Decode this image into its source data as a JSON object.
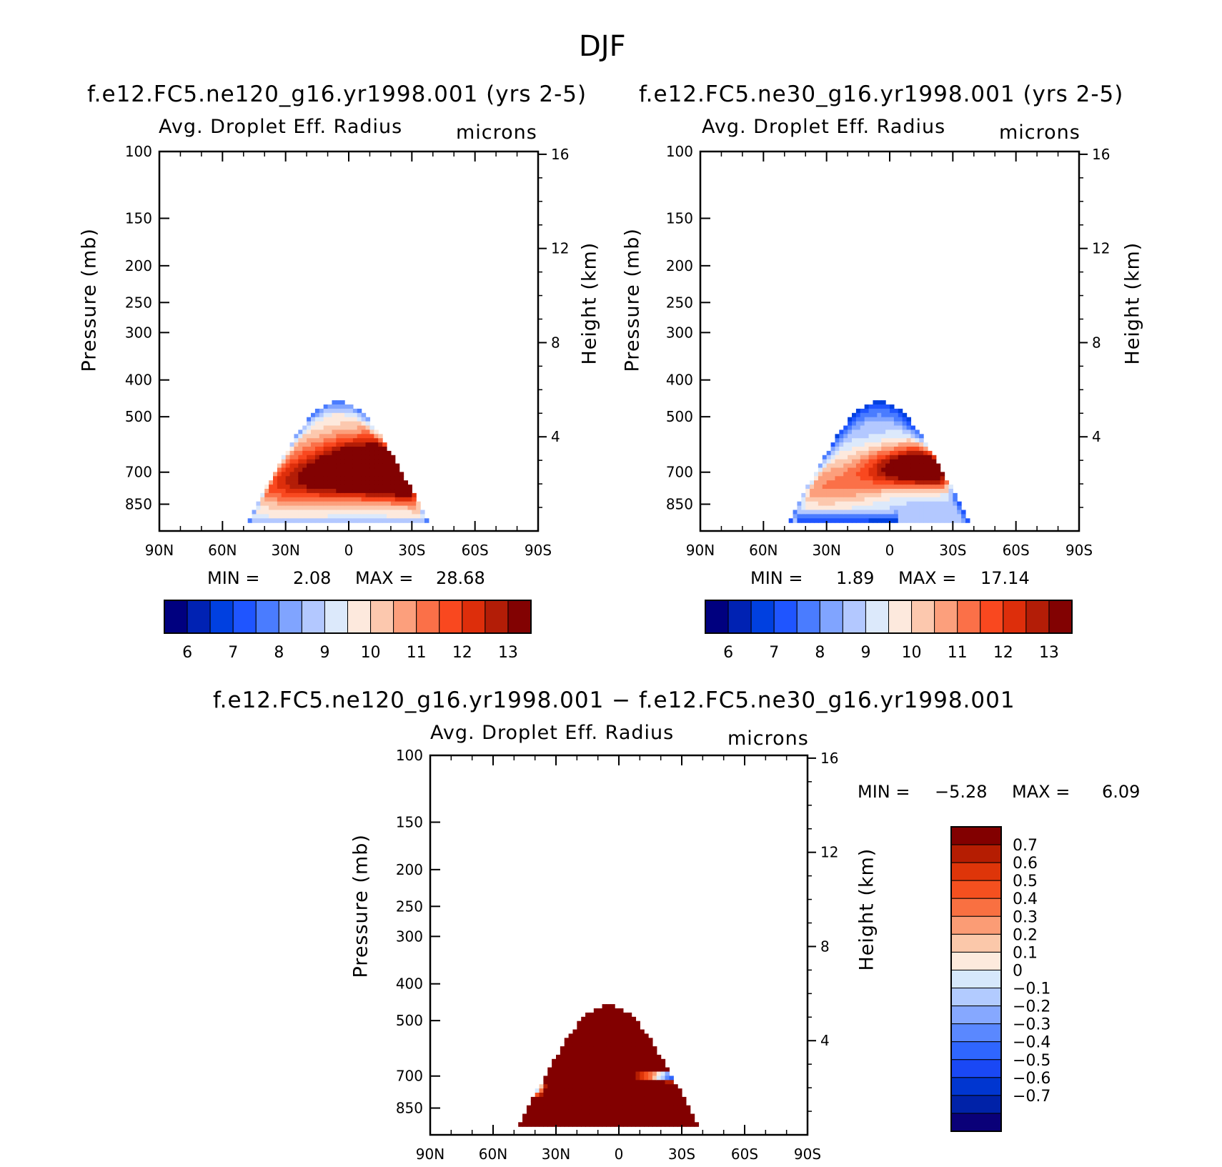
{
  "figure_title": "DJF",
  "colors": {
    "seq": [
      "#00007f",
      "#0022b3",
      "#0040e0",
      "#1f55ff",
      "#4a7cff",
      "#80a4ff",
      "#b3c8ff",
      "#dce9fb",
      "#fde9dd",
      "#fcc8ae",
      "#fc9f7c",
      "#fb7048",
      "#f9481f",
      "#dd2e0b",
      "#b31d07",
      "#820202"
    ],
    "diff": [
      "#0a0078",
      "#0022a8",
      "#0036d0",
      "#1a48f5",
      "#2f66ff",
      "#5a88ff",
      "#86a8ff",
      "#b2cbff",
      "#d6e8fb",
      "#fdeadd",
      "#fbc8aa",
      "#fb9c75",
      "#f97041",
      "#f5501f",
      "#de3509",
      "#b51d02",
      "#820000"
    ]
  },
  "chart_data": [
    {
      "type": "contour",
      "title": "f.e12.FC5.ne120_g16.yr1998.001 (yrs 2-5)",
      "variable": "Avg. Droplet Eff. Radius",
      "units": "microns",
      "xlabel": "",
      "ylabel": "Pressure (mb)",
      "ylabel_right": "Height (km)",
      "xticks": [
        "90N",
        "60N",
        "30N",
        "0",
        "30S",
        "60S",
        "90S"
      ],
      "yticks": [
        "100",
        "150",
        "200",
        "250",
        "300",
        "400",
        "500",
        "700",
        "850"
      ],
      "yticks_right": [
        "16",
        "12",
        "8",
        "4"
      ],
      "ylim": [
        100,
        1000
      ],
      "min_label": "MIN =",
      "min_value": "2.08",
      "max_label": "MAX =",
      "max_value": "28.68",
      "colorbar_labels": [
        "6",
        "7",
        "8",
        "9",
        "10",
        "11",
        "12",
        "13"
      ]
    },
    {
      "type": "contour",
      "title": "f.e12.FC5.ne30_g16.yr1998.001 (yrs 2-5)",
      "variable": "Avg. Droplet Eff. Radius",
      "units": "microns",
      "xlabel": "",
      "ylabel": "Pressure (mb)",
      "ylabel_right": "Height (km)",
      "xticks": [
        "90N",
        "60N",
        "30N",
        "0",
        "30S",
        "60S",
        "90S"
      ],
      "yticks": [
        "100",
        "150",
        "200",
        "250",
        "300",
        "400",
        "500",
        "700",
        "850"
      ],
      "yticks_right": [
        "16",
        "12",
        "8",
        "4"
      ],
      "ylim": [
        100,
        1000
      ],
      "min_label": "MIN =",
      "min_value": "1.89",
      "max_label": "MAX =",
      "max_value": "17.14",
      "colorbar_labels": [
        "6",
        "7",
        "8",
        "9",
        "10",
        "11",
        "12",
        "13"
      ]
    },
    {
      "type": "contour",
      "title": "f.e12.FC5.ne120_g16.yr1998.001 − f.e12.FC5.ne30_g16.yr1998.001",
      "variable": "Avg. Droplet Eff. Radius",
      "units": "microns",
      "xlabel": "",
      "ylabel": "Pressure (mb)",
      "ylabel_right": "Height (km)",
      "xticks": [
        "90N",
        "60N",
        "30N",
        "0",
        "30S",
        "60S",
        "90S"
      ],
      "yticks": [
        "100",
        "150",
        "200",
        "250",
        "300",
        "400",
        "500",
        "700",
        "850"
      ],
      "yticks_right": [
        "16",
        "12",
        "8",
        "4"
      ],
      "ylim": [
        100,
        1000
      ],
      "min_label": "MIN =",
      "min_value": "−5.28",
      "max_label": "MAX =",
      "max_value": "6.09",
      "colorbar_labels": [
        "0.7",
        "0.6",
        "0.5",
        "0.4",
        "0.3",
        "0.2",
        "0.1",
        "0",
        "−0.1",
        "−0.2",
        "−0.3",
        "−0.4",
        "−0.5",
        "−0.6",
        "−0.7"
      ]
    }
  ]
}
